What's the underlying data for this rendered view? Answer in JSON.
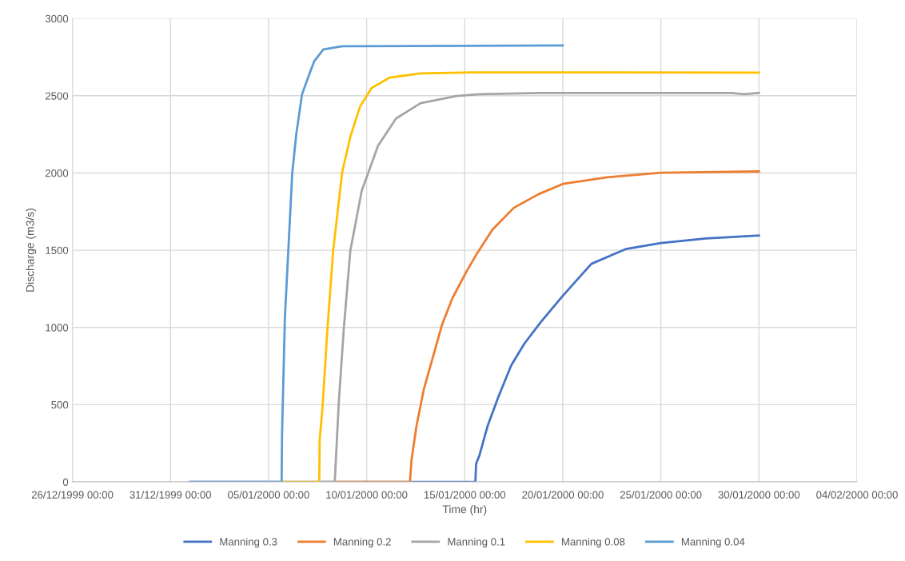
{
  "chart_data": {
    "type": "line",
    "xlabel": "Time (hr)",
    "ylabel": "Discharge (m3/s)",
    "xlim": [
      "1999-12-26",
      "2000-02-04"
    ],
    "xticks": [
      {
        "value": "1999-12-26",
        "label": "26/12/1999 00:00"
      },
      {
        "value": "1999-12-31",
        "label": "31/12/1999 00:00"
      },
      {
        "value": "2000-01-05",
        "label": "05/01/2000 00:00"
      },
      {
        "value": "2000-01-10",
        "label": "10/01/2000 00:00"
      },
      {
        "value": "2000-01-15",
        "label": "15/01/2000 00:00"
      },
      {
        "value": "2000-01-20",
        "label": "20/01/2000 00:00"
      },
      {
        "value": "2000-01-25",
        "label": "25/01/2000 00:00"
      },
      {
        "value": "2000-01-30",
        "label": "30/01/2000 00:00"
      },
      {
        "value": "2000-02-04",
        "label": "04/02/2000 00:00"
      }
    ],
    "ylim": [
      0,
      3000
    ],
    "yticks": [
      0,
      500,
      1000,
      1500,
      2000,
      2500,
      3000
    ],
    "grid": true,
    "legend": "bottom",
    "marker": "none",
    "line_style": "solid",
    "series": [
      {
        "name": "Manning 0.3",
        "color": "#4472c4",
        "x": [
          "2000-01-01T00:00",
          "2000-01-15T13:00",
          "2000-01-15T14:00",
          "2000-01-15T18:00",
          "2000-01-16T04:00",
          "2000-01-16T17:00",
          "2000-01-17T09:00",
          "2000-01-18T01:00",
          "2000-01-18T21:00",
          "2000-01-20T00:00",
          "2000-01-21T11:00",
          "2000-01-23T05:00",
          "2000-01-25T00:00",
          "2000-01-27T07:00",
          "2000-01-30T00:00"
        ],
        "values": [
          0,
          0,
          119,
          171,
          362,
          548,
          755,
          895,
          1034,
          1205,
          1412,
          1507,
          1546,
          1576,
          1595
        ]
      },
      {
        "name": "Manning 0.2",
        "color": "#ed7d31",
        "x": [
          "2000-01-08T09:00",
          "2000-01-12T05:00",
          "2000-01-12T07:00",
          "2000-01-12T13:00",
          "2000-01-12T22:00",
          "2000-01-13T09:00",
          "2000-01-13T20:00",
          "2000-01-14T09:00",
          "2000-01-15T02:00",
          "2000-01-15T15:00",
          "2000-01-16T10:00",
          "2000-01-17T12:00",
          "2000-01-18T18:00",
          "2000-01-20T00:00",
          "2000-01-22T06:00",
          "2000-01-25T00:00",
          "2000-01-30T00:00"
        ],
        "values": [
          0,
          0,
          145,
          362,
          600,
          807,
          1014,
          1190,
          1360,
          1479,
          1634,
          1774,
          1862,
          1929,
          1972,
          2002,
          2010
        ]
      },
      {
        "name": "Manning 0.1",
        "color": "#a5a5a5",
        "x": [
          "2000-01-07T14:00",
          "2000-01-08T09:00",
          "2000-01-08T14:00",
          "2000-01-08T20:00",
          "2000-01-09T04:00",
          "2000-01-09T18:00",
          "2000-01-10T14:00",
          "2000-01-11T12:00",
          "2000-01-12T18:00",
          "2000-01-14T14:00",
          "2000-01-15T18:00",
          "2000-01-18T20:00",
          "2000-01-28T14:00",
          "2000-01-29T06:00",
          "2000-01-30T00:00"
        ],
        "values": [
          0,
          0,
          522,
          988,
          1495,
          1885,
          2177,
          2353,
          2452,
          2498,
          2510,
          2518,
          2518,
          2510,
          2518
        ]
      },
      {
        "name": "Manning 0.08",
        "color": "#ffc000",
        "x": [
          "2000-01-05T16:00",
          "2000-01-07T14:00",
          "2000-01-07T14:30",
          "2000-01-07T18:00",
          "2000-01-08T00:00",
          "2000-01-08T07:00",
          "2000-01-08T18:00",
          "2000-01-09T04:00",
          "2000-01-09T16:00",
          "2000-01-10T06:00",
          "2000-01-11T04:00",
          "2000-01-12T18:00",
          "2000-01-15T08:00",
          "2000-01-30T00:00"
        ],
        "values": [
          0,
          0,
          270,
          480,
          988,
          1495,
          2002,
          2234,
          2431,
          2550,
          2617,
          2645,
          2651,
          2650
        ]
      },
      {
        "name": "Manning 0.04",
        "color": "#5b9bd5",
        "x": [
          "2000-01-01T00:00",
          "2000-01-05T16:00",
          "2000-01-05T16:30",
          "2000-01-05T20:00",
          "2000-01-06T05:00",
          "2000-01-06T10:00",
          "2000-01-06T17:00",
          "2000-01-07T01:00",
          "2000-01-07T08:00",
          "2000-01-07T19:00",
          "2000-01-08T18:00",
          "2000-01-20T00:00"
        ],
        "values": [
          0,
          0,
          310,
          1065,
          2000,
          2255,
          2510,
          2627,
          2725,
          2800,
          2820,
          2825
        ]
      }
    ]
  }
}
